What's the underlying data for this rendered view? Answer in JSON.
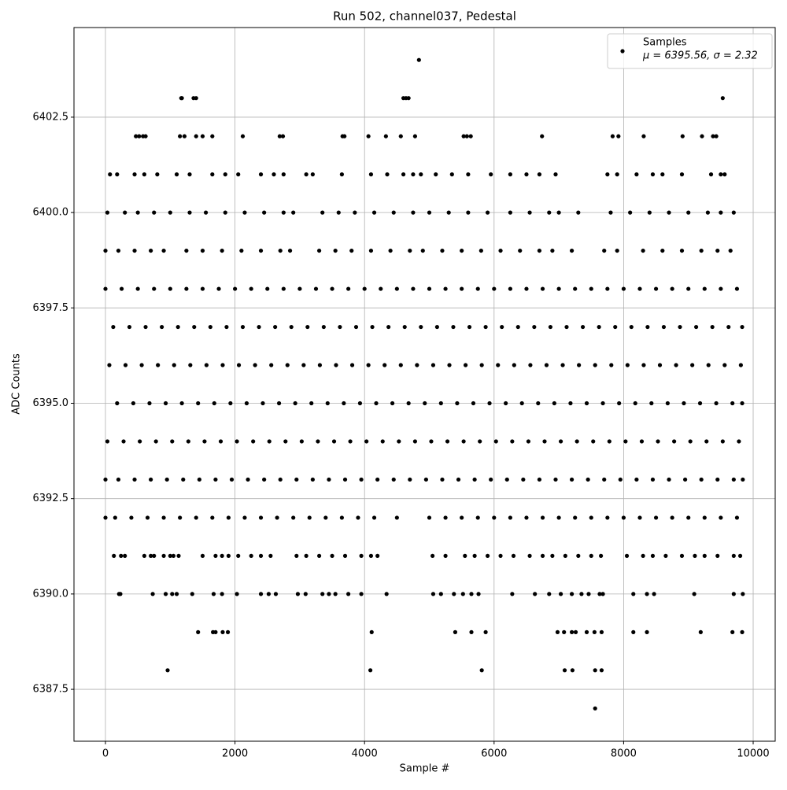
{
  "chart_data": {
    "type": "scatter",
    "title": "Run 502, channel037, Pedestal",
    "xlabel": "Sample #",
    "ylabel": "ADC Counts",
    "xlim": [
      -486,
      10340
    ],
    "ylim": [
      6386.14,
      6404.85
    ],
    "xticks": [
      0,
      2000,
      4000,
      6000,
      8000,
      10000
    ],
    "yticks": [
      6387.5,
      {
        "value": 6390,
        "label": "6390.0"
      },
      6392.5,
      {
        "value": 6395,
        "label": "6395.0"
      },
      6397.5,
      {
        "value": 6400,
        "label": "6400.0"
      },
      6402.5
    ],
    "grid": true,
    "legend": "upper right",
    "legend_note": "μ = 6395.56, σ = 2.32",
    "x": [
      0,
      250,
      500,
      750,
      1000,
      1250,
      1500,
      1750,
      2000,
      2250,
      2500,
      2750,
      3000,
      3250,
      3500,
      3750,
      4000,
      4250,
      4500,
      4750,
      5000,
      5250,
      5500,
      5750,
      6000,
      6250,
      6500,
      6750,
      7000,
      7250,
      7500,
      7750,
      8000,
      8250,
      8500,
      8750,
      9000,
      9250,
      9500,
      9750,
      120,
      370,
      620,
      870,
      1120,
      1370,
      1620,
      1870,
      2120,
      2370,
      2620,
      2870,
      3120,
      3370,
      3620,
      3870,
      4120,
      4370,
      4620,
      4870,
      5120,
      5370,
      5620,
      5870,
      6120,
      6370,
      6620,
      6870,
      7120,
      7370,
      7620,
      7870,
      8120,
      8370,
      8620,
      8870,
      9120,
      9370,
      9620,
      9830,
      60,
      310,
      560,
      810,
      1060,
      1310,
      1560,
      1810,
      2060,
      2310,
      2560,
      2810,
      3060,
      3310,
      3560,
      3810,
      4060,
      4310,
      4560,
      4810,
      5060,
      5310,
      5560,
      5810,
      6060,
      6310,
      6560,
      6810,
      7060,
      7310,
      7560,
      7810,
      8060,
      8310,
      8560,
      8810,
      9060,
      9310,
      9560,
      9810,
      180,
      430,
      680,
      930,
      1180,
      1430,
      1680,
      1930,
      2180,
      2430,
      2680,
      2930,
      3180,
      3430,
      3680,
      3930,
      4180,
      4430,
      4680,
      4930,
      5180,
      5430,
      5680,
      5930,
      6180,
      6430,
      6680,
      6930,
      7180,
      7430,
      7680,
      7930,
      8180,
      8430,
      8680,
      8930,
      9180,
      9430,
      9680,
      9830,
      30,
      280,
      530,
      780,
      1030,
      1280,
      1530,
      1780,
      2030,
      2280,
      2530,
      2780,
      3030,
      3280,
      3530,
      3780,
      4030,
      4280,
      4530,
      4780,
      5030,
      5280,
      5530,
      5780,
      6030,
      6280,
      6530,
      6780,
      7030,
      7280,
      7530,
      7780,
      8030,
      8280,
      8530,
      8780,
      9030,
      9280,
      9530,
      9780,
      0,
      200,
      450,
      700,
      950,
      1200,
      1450,
      1700,
      1950,
      2200,
      2450,
      2700,
      2950,
      3200,
      3450,
      3700,
      3950,
      4200,
      4450,
      4700,
      4950,
      5200,
      5450,
      5700,
      5950,
      6200,
      6450,
      6700,
      6950,
      7200,
      7450,
      7700,
      7950,
      8200,
      8450,
      8700,
      8950,
      9200,
      9450,
      9700,
      9840,
      0,
      150,
      400,
      650,
      900,
      1150,
      1400,
      1650,
      1900,
      2150,
      2400,
      2650,
      2900,
      3150,
      3400,
      3650,
      3900,
      4150,
      4500,
      5000,
      5250,
      5500,
      5750,
      6000,
      6250,
      6500,
      6750,
      7000,
      7250,
      7500,
      7750,
      8000,
      8250,
      8500,
      8750,
      9000,
      9250,
      9500,
      9750,
      0,
      200,
      450,
      700,
      900,
      1250,
      1500,
      1800,
      2100,
      2400,
      2700,
      2850,
      3300,
      3550,
      3800,
      4100,
      4400,
      4700,
      4900,
      5200,
      5500,
      5800,
      6100,
      6400,
      6700,
      6900,
      7200,
      7700,
      7900,
      8300,
      8600,
      8900,
      9200,
      9450,
      9650,
      30,
      300,
      500,
      750,
      1000,
      1300,
      1550,
      1850,
      2150,
      2450,
      2750,
      2900,
      3350,
      3600,
      3850,
      4150,
      4450,
      4750,
      5000,
      5300,
      5600,
      5900,
      6250,
      6550,
      6850,
      7000,
      7300,
      7800,
      8100,
      8400,
      8700,
      9000,
      9300,
      9500,
      9700,
      70,
      180,
      450,
      600,
      800,
      1100,
      1300,
      1650,
      1850,
      2050,
      2400,
      2600,
      2750,
      3100,
      3200,
      3650,
      4100,
      4350,
      4600,
      4750,
      4870,
      5100,
      5350,
      5600,
      5950,
      6250,
      6500,
      6700,
      6950,
      7750,
      7900,
      8200,
      8450,
      8600,
      8900,
      9350,
      9500,
      9560,
      470,
      520,
      580,
      620,
      1150,
      1220,
      1400,
      1500,
      1650,
      2120,
      2690,
      2740,
      3660,
      3690,
      4060,
      4330,
      4560,
      4780,
      5530,
      5580,
      5640,
      6740,
      7830,
      7920,
      8310,
      8910,
      9210,
      9380,
      9430,
      130,
      240,
      300,
      600,
      700,
      750,
      900,
      1000,
      1050,
      1130,
      1500,
      1700,
      1800,
      1900,
      2050,
      2250,
      2400,
      2550,
      2950,
      3100,
      3300,
      3500,
      3700,
      3950,
      4100,
      4200,
      5050,
      5250,
      5550,
      5700,
      5900,
      6100,
      6300,
      6550,
      6750,
      6900,
      7100,
      7300,
      7500,
      7650,
      8050,
      8300,
      8450,
      8650,
      8900,
      9100,
      9250,
      9450,
      9700,
      9800,
      210,
      230,
      730,
      930,
      1030,
      1100,
      1340,
      1670,
      1800,
      2030,
      2400,
      2520,
      2630,
      2970,
      3090,
      3350,
      3450,
      3550,
      3750,
      3950,
      4340,
      5060,
      5180,
      5380,
      5520,
      5650,
      5760,
      6280,
      6630,
      6850,
      7030,
      7200,
      7350,
      7460,
      7630,
      7680,
      8150,
      8360,
      8470,
      9090,
      9700,
      9840,
      1430,
      1660,
      1700,
      1810,
      1890,
      4110,
      5400,
      5650,
      5870,
      6980,
      7080,
      7200,
      7260,
      7430,
      7550,
      7660,
      8150,
      8360,
      9190,
      9680,
      9830,
      960,
      4090,
      5810,
      7090,
      7210,
      7560,
      7660,
      7560,
      1170,
      1180,
      1360,
      1400,
      4600,
      4640,
      4680,
      9530,
      4840
    ],
    "series": [
      {
        "name": "Samples",
        "color": "#000000",
        "values": [
          6398,
          6398,
          6398,
          6398,
          6398,
          6398,
          6398,
          6398,
          6398,
          6398,
          6398,
          6398,
          6398,
          6398,
          6398,
          6398,
          6398,
          6398,
          6398,
          6398,
          6398,
          6398,
          6398,
          6398,
          6398,
          6398,
          6398,
          6398,
          6398,
          6398,
          6398,
          6398,
          6398,
          6398,
          6398,
          6398,
          6398,
          6398,
          6398,
          6398,
          6397,
          6397,
          6397,
          6397,
          6397,
          6397,
          6397,
          6397,
          6397,
          6397,
          6397,
          6397,
          6397,
          6397,
          6397,
          6397,
          6397,
          6397,
          6397,
          6397,
          6397,
          6397,
          6397,
          6397,
          6397,
          6397,
          6397,
          6397,
          6397,
          6397,
          6397,
          6397,
          6397,
          6397,
          6397,
          6397,
          6397,
          6397,
          6397,
          6397,
          6396,
          6396,
          6396,
          6396,
          6396,
          6396,
          6396,
          6396,
          6396,
          6396,
          6396,
          6396,
          6396,
          6396,
          6396,
          6396,
          6396,
          6396,
          6396,
          6396,
          6396,
          6396,
          6396,
          6396,
          6396,
          6396,
          6396,
          6396,
          6396,
          6396,
          6396,
          6396,
          6396,
          6396,
          6396,
          6396,
          6396,
          6396,
          6396,
          6396,
          6395,
          6395,
          6395,
          6395,
          6395,
          6395,
          6395,
          6395,
          6395,
          6395,
          6395,
          6395,
          6395,
          6395,
          6395,
          6395,
          6395,
          6395,
          6395,
          6395,
          6395,
          6395,
          6395,
          6395,
          6395,
          6395,
          6395,
          6395,
          6395,
          6395,
          6395,
          6395,
          6395,
          6395,
          6395,
          6395,
          6395,
          6395,
          6395,
          6395,
          6394,
          6394,
          6394,
          6394,
          6394,
          6394,
          6394,
          6394,
          6394,
          6394,
          6394,
          6394,
          6394,
          6394,
          6394,
          6394,
          6394,
          6394,
          6394,
          6394,
          6394,
          6394,
          6394,
          6394,
          6394,
          6394,
          6394,
          6394,
          6394,
          6394,
          6394,
          6394,
          6394,
          6394,
          6394,
          6394,
          6394,
          6394,
          6394,
          6394,
          6393,
          6393,
          6393,
          6393,
          6393,
          6393,
          6393,
          6393,
          6393,
          6393,
          6393,
          6393,
          6393,
          6393,
          6393,
          6393,
          6393,
          6393,
          6393,
          6393,
          6393,
          6393,
          6393,
          6393,
          6393,
          6393,
          6393,
          6393,
          6393,
          6393,
          6393,
          6393,
          6393,
          6393,
          6393,
          6393,
          6393,
          6393,
          6393,
          6393,
          6393,
          6392,
          6392,
          6392,
          6392,
          6392,
          6392,
          6392,
          6392,
          6392,
          6392,
          6392,
          6392,
          6392,
          6392,
          6392,
          6392,
          6392,
          6392,
          6392,
          6392,
          6392,
          6392,
          6392,
          6392,
          6392,
          6392,
          6392,
          6392,
          6392,
          6392,
          6392,
          6392,
          6392,
          6392,
          6392,
          6392,
          6392,
          6392,
          6392,
          6399,
          6399,
          6399,
          6399,
          6399,
          6399,
          6399,
          6399,
          6399,
          6399,
          6399,
          6399,
          6399,
          6399,
          6399,
          6399,
          6399,
          6399,
          6399,
          6399,
          6399,
          6399,
          6399,
          6399,
          6399,
          6399,
          6399,
          6399,
          6399,
          6399,
          6399,
          6399,
          6399,
          6399,
          6399,
          6400,
          6400,
          6400,
          6400,
          6400,
          6400,
          6400,
          6400,
          6400,
          6400,
          6400,
          6400,
          6400,
          6400,
          6400,
          6400,
          6400,
          6400,
          6400,
          6400,
          6400,
          6400,
          6400,
          6400,
          6400,
          6400,
          6400,
          6400,
          6400,
          6400,
          6400,
          6400,
          6400,
          6400,
          6400,
          6401,
          6401,
          6401,
          6401,
          6401,
          6401,
          6401,
          6401,
          6401,
          6401,
          6401,
          6401,
          6401,
          6401,
          6401,
          6401,
          6401,
          6401,
          6401,
          6401,
          6401,
          6401,
          6401,
          6401,
          6401,
          6401,
          6401,
          6401,
          6401,
          6401,
          6401,
          6401,
          6401,
          6401,
          6401,
          6401,
          6401,
          6401,
          6402,
          6402,
          6402,
          6402,
          6402,
          6402,
          6402,
          6402,
          6402,
          6402,
          6402,
          6402,
          6402,
          6402,
          6402,
          6402,
          6402,
          6402,
          6402,
          6402,
          6402,
          6402,
          6402,
          6402,
          6402,
          6402,
          6402,
          6402,
          6402,
          6391,
          6391,
          6391,
          6391,
          6391,
          6391,
          6391,
          6391,
          6391,
          6391,
          6391,
          6391,
          6391,
          6391,
          6391,
          6391,
          6391,
          6391,
          6391,
          6391,
          6391,
          6391,
          6391,
          6391,
          6391,
          6391,
          6391,
          6391,
          6391,
          6391,
          6391,
          6391,
          6391,
          6391,
          6391,
          6391,
          6391,
          6391,
          6391,
          6391,
          6391,
          6391,
          6391,
          6391,
          6391,
          6391,
          6391,
          6391,
          6391,
          6391,
          6390,
          6390,
          6390,
          6390,
          6390,
          6390,
          6390,
          6390,
          6390,
          6390,
          6390,
          6390,
          6390,
          6390,
          6390,
          6390,
          6390,
          6390,
          6390,
          6390,
          6390,
          6390,
          6390,
          6390,
          6390,
          6390,
          6390,
          6390,
          6390,
          6390,
          6390,
          6390,
          6390,
          6390,
          6390,
          6390,
          6390,
          6390,
          6390,
          6390,
          6390,
          6390,
          6389,
          6389,
          6389,
          6389,
          6389,
          6389,
          6389,
          6389,
          6389,
          6389,
          6389,
          6389,
          6389,
          6389,
          6389,
          6389,
          6389,
          6389,
          6389,
          6389,
          6389,
          6388,
          6388,
          6388,
          6388,
          6388,
          6388,
          6388,
          6387,
          6403,
          6403,
          6403,
          6403,
          6403,
          6403,
          6403,
          6403,
          6404
        ]
      }
    ]
  }
}
